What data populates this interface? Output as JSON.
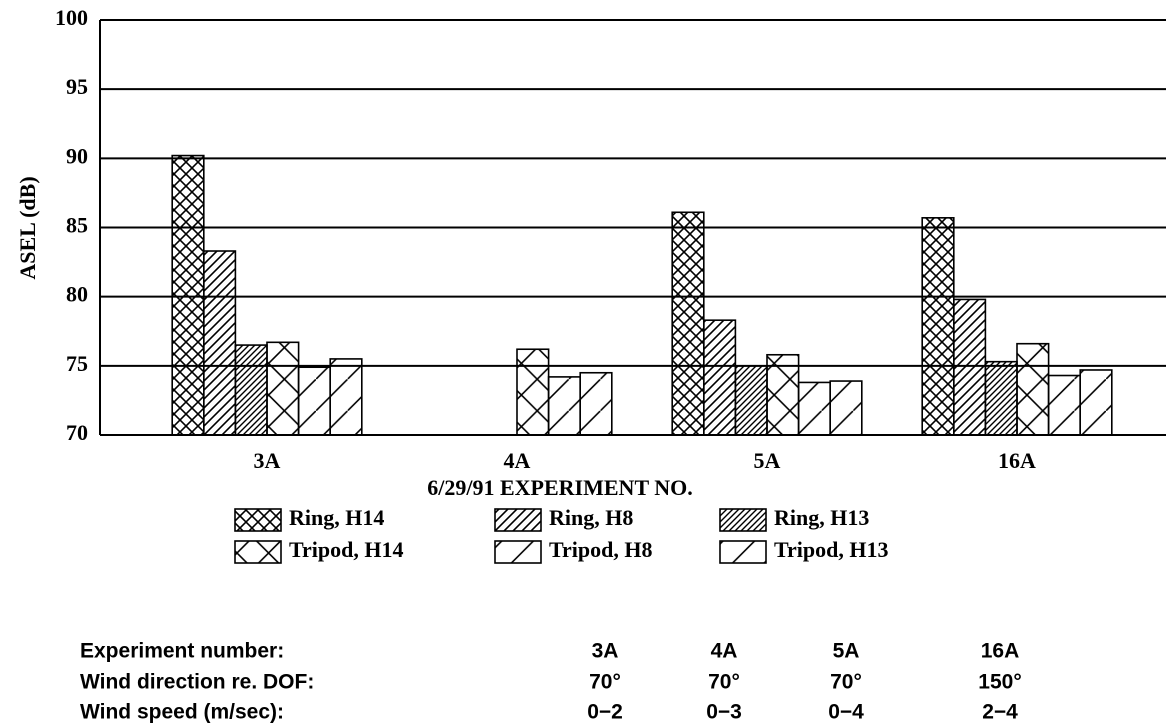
{
  "chart_data": {
    "type": "bar",
    "ylabel": "ASEL (dB)",
    "xlabel": "6/29/91 EXPERIMENT NO.",
    "categories": [
      "3A",
      "4A",
      "5A",
      "16A"
    ],
    "series": [
      {
        "name": "Ring, H14",
        "color": "#000000",
        "pattern": "crosshatch",
        "values": [
          90.2,
          null,
          86.1,
          85.7
        ]
      },
      {
        "name": "Ring, H8",
        "color": "#000000",
        "pattern": "diagonal",
        "values": [
          83.3,
          null,
          78.3,
          79.8
        ]
      },
      {
        "name": "Ring, H13",
        "color": "#000000",
        "pattern": "diagonal-dense",
        "values": [
          76.5,
          null,
          75.0,
          75.3
        ]
      },
      {
        "name": "Tripod, H14",
        "color": "#000000",
        "pattern": "cross",
        "values": [
          76.7,
          76.2,
          75.8,
          76.6
        ]
      },
      {
        "name": "Tripod, H8",
        "color": "#000000",
        "pattern": "diagonal-wide",
        "values": [
          74.9,
          74.2,
          73.8,
          74.3
        ]
      },
      {
        "name": "Tripod, H13",
        "color": "#000000",
        "pattern": "diagonal-wide",
        "values": [
          75.5,
          74.5,
          73.9,
          74.7
        ]
      }
    ],
    "ylim": [
      70,
      100
    ],
    "yticks": [
      70,
      75,
      80,
      85,
      90,
      95,
      100
    ],
    "grid": true,
    "legend": "bottom"
  },
  "table": {
    "rows": [
      [
        "Experiment number:",
        "3A",
        "4A",
        "5A",
        "16A"
      ],
      [
        "Wind direction re. DOF:",
        "70°",
        "70°",
        "70°",
        "150°"
      ],
      [
        "Wind speed (m/sec):",
        "0−2",
        "0−3",
        "0−4",
        "2−4"
      ]
    ]
  }
}
